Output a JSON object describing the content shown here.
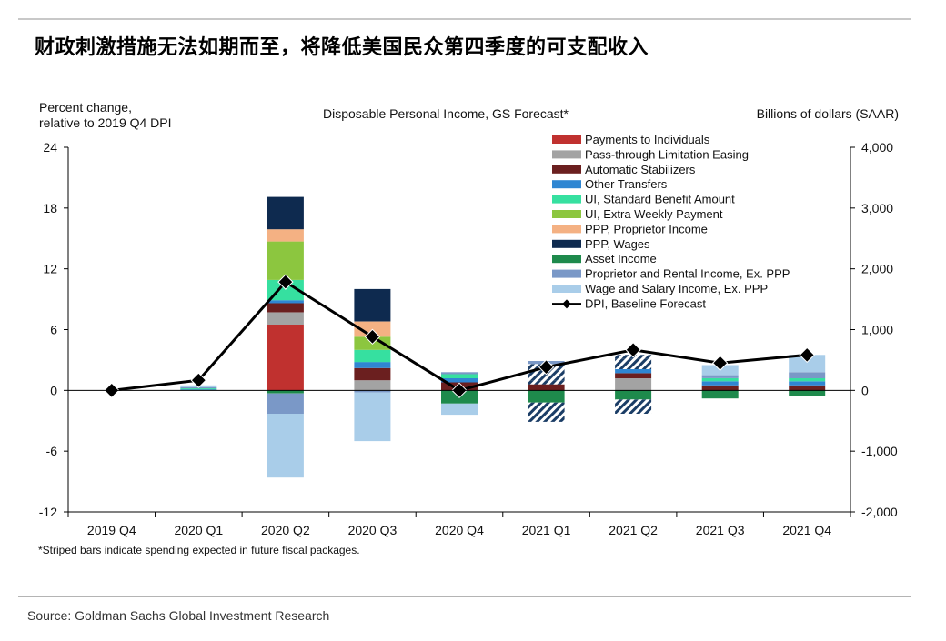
{
  "title": "财政刺激措施无法如期而至，将降低美国民众第四季度的可支配收入",
  "source": "Source: Goldman Sachs Global Investment Research",
  "chart_data": {
    "type": "bar",
    "stacked": true,
    "title": "Disposable Personal Income, GS Forecast*",
    "left_axis_label": [
      "Percent change,",
      "relative to 2019 Q4 DPI"
    ],
    "right_axis_label": "Billions of dollars (SAAR)",
    "footnote": "*Striped bars indicate spending expected in future fiscal packages.",
    "categories": [
      "2019 Q4",
      "2020 Q1",
      "2020 Q2",
      "2020 Q3",
      "2020 Q4",
      "2021 Q1",
      "2021 Q2",
      "2021 Q3",
      "2021 Q4"
    ],
    "ylim": [
      -12,
      24
    ],
    "left_ticks": [
      "24",
      "18",
      "12",
      "6",
      "0",
      "-6",
      "-12"
    ],
    "left_tick_values": [
      24,
      18,
      12,
      6,
      0,
      -6,
      -12
    ],
    "right_ticks": [
      "4,000",
      "3,000",
      "2,000",
      "1,000",
      "0",
      "-1,000",
      "-2,000"
    ],
    "legend_position": "top-right",
    "series": [
      {
        "name": "Payments to Individuals",
        "color": "#c0312f",
        "values": [
          0,
          0,
          6.5,
          0,
          0,
          0,
          0,
          0,
          0
        ]
      },
      {
        "name": "Pass-through Limitation Easing",
        "color": "#a3a3a3",
        "values": [
          0,
          0,
          1.2,
          1.0,
          0,
          0,
          1.2,
          0,
          0
        ]
      },
      {
        "name": "Automatic Stabilizers",
        "color": "#6b1f1f",
        "values": [
          0,
          0,
          0.9,
          1.2,
          0.8,
          0.6,
          0.5,
          0.5,
          0.5
        ]
      },
      {
        "name": "Other Transfers",
        "color": "#2f86d2",
        "values": [
          0,
          0.1,
          0.3,
          0.6,
          0.4,
          0.4,
          0.4,
          0.4,
          0.4
        ]
      },
      {
        "name": "UI, Standard Benefit Amount",
        "color": "#36e0a0",
        "values": [
          0,
          0.1,
          2.0,
          1.2,
          0.4,
          0.5,
          0.4,
          0.3,
          0.3
        ]
      },
      {
        "name": "UI, Extra Weekly Payment",
        "color": "#8cc63f",
        "values": [
          0,
          0,
          3.8,
          1.3,
          0,
          0.5,
          0,
          0,
          0
        ]
      },
      {
        "name": "PPP, Proprietor Income",
        "color": "#f4b183",
        "values": [
          0,
          0,
          1.2,
          1.5,
          0,
          0.6,
          0.6,
          0,
          0
        ]
      },
      {
        "name": "PPP, Wages",
        "color": "#0e2a4f",
        "values": [
          0,
          0,
          3.2,
          3.2,
          0,
          0,
          0,
          0,
          0
        ]
      },
      {
        "name": "Asset Income",
        "color": "#1e8a4c",
        "values": [
          0,
          0,
          -0.3,
          0,
          -1.3,
          -1.2,
          -0.9,
          -0.8,
          -0.6
        ]
      },
      {
        "name": "Proprietor and Rental Income, Ex. PPP",
        "color": "#7a98c7",
        "values": [
          0,
          0.1,
          -2.0,
          -0.2,
          0.2,
          0.3,
          0.4,
          0.3,
          0.6
        ]
      },
      {
        "name": "Wage and Salary Income, Ex. PPP",
        "color": "#a9cde9",
        "values": [
          0,
          0.2,
          -6.3,
          -4.8,
          -1.1,
          -1.9,
          -1.4,
          1.0,
          1.7
        ]
      }
    ],
    "striped": {
      "2021 Q1": [
        "Other Transfers",
        "UI, Standard Benefit Amount",
        "UI, Extra Weekly Payment",
        "PPP, Proprietor Income",
        "Wage and Salary Income, Ex. PPP"
      ],
      "2021 Q2": [
        "UI, Standard Benefit Amount",
        "PPP, Proprietor Income",
        "Proprietor and Rental Income, Ex. PPP",
        "Wage and Salary Income, Ex. PPP"
      ]
    },
    "line": {
      "name": "DPI, Baseline Forecast",
      "color": "#000000",
      "values": [
        0,
        1.0,
        10.7,
        5.3,
        0.0,
        2.3,
        4.0,
        2.7,
        3.5
      ]
    }
  }
}
